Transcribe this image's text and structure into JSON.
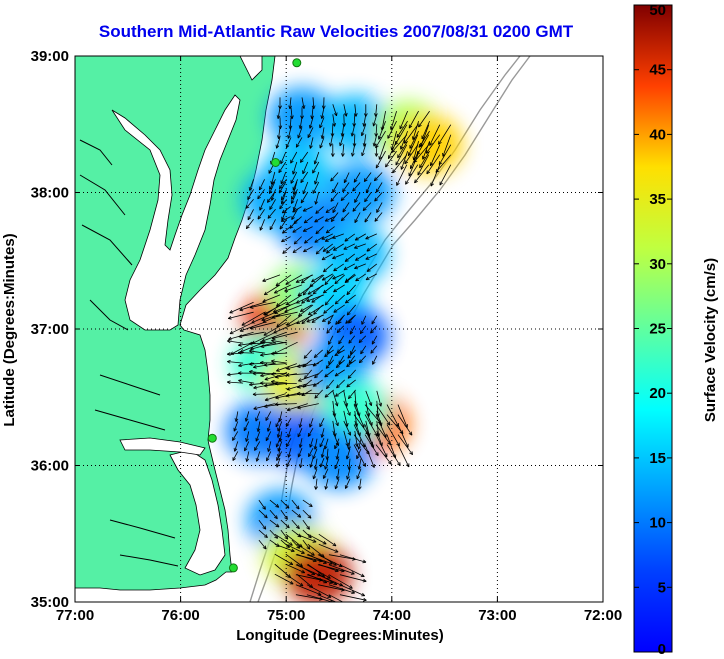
{
  "title": "Southern Mid-Atlantic Raw Velocities 2007/08/31 0200 GMT",
  "x_axis": {
    "label": "Longitude (Degrees:Minutes)",
    "ticks": [
      "77:00",
      "76:00",
      "75:00",
      "74:00",
      "73:00",
      "72:00"
    ]
  },
  "y_axis": {
    "label": "Latitude (Degrees:Minutes)",
    "ticks": [
      "39:00",
      "38:00",
      "37:00",
      "36:00",
      "35:00"
    ]
  },
  "colorbar": {
    "label": "Surface Velocity (cm/s)",
    "ticks": [
      "50",
      "45",
      "40",
      "35",
      "30",
      "25",
      "20",
      "15",
      "10",
      "5",
      "0"
    ],
    "min": 0,
    "max": 50,
    "colormap": "jet"
  },
  "chart_data": {
    "type": "heatmap",
    "title": "Southern Mid-Atlantic Raw Velocities 2007/08/31 0200 GMT",
    "xlabel": "Longitude (Degrees:Minutes)",
    "ylabel": "Latitude (Degrees:Minutes)",
    "xlim": [
      -77,
      -72
    ],
    "ylim": [
      35,
      39
    ],
    "grid": true,
    "colorbar_label": "Surface Velocity (cm/s)",
    "colorbar_range": [
      0,
      50
    ],
    "land_color": "#55f0a5",
    "blobs": [
      {
        "lon": -74.85,
        "lat": 38.55,
        "speed": 12,
        "dir_deg": 200
      },
      {
        "lon": -74.35,
        "lat": 38.5,
        "speed": 14,
        "dir_deg": 190
      },
      {
        "lon": -73.85,
        "lat": 38.45,
        "speed": 30,
        "dir_deg": 205
      },
      {
        "lon": -73.65,
        "lat": 38.35,
        "speed": 38,
        "dir_deg": 210
      },
      {
        "lon": -74.9,
        "lat": 38.15,
        "speed": 15,
        "dir_deg": 205
      },
      {
        "lon": -74.3,
        "lat": 38.0,
        "speed": 12,
        "dir_deg": 215
      },
      {
        "lon": -74.75,
        "lat": 37.75,
        "speed": 10,
        "dir_deg": 235
      },
      {
        "lon": -75.1,
        "lat": 37.95,
        "speed": 13,
        "dir_deg": 210
      },
      {
        "lon": -74.35,
        "lat": 37.55,
        "speed": 14,
        "dir_deg": 240
      },
      {
        "lon": -75.1,
        "lat": 37.05,
        "speed": 45,
        "dir_deg": 250
      },
      {
        "lon": -74.85,
        "lat": 37.25,
        "speed": 28,
        "dir_deg": 240
      },
      {
        "lon": -74.55,
        "lat": 37.25,
        "speed": 16,
        "dir_deg": 230
      },
      {
        "lon": -74.35,
        "lat": 36.95,
        "speed": 8,
        "dir_deg": 215
      },
      {
        "lon": -75.2,
        "lat": 36.75,
        "speed": 22,
        "dir_deg": 270
      },
      {
        "lon": -74.9,
        "lat": 36.6,
        "speed": 35,
        "dir_deg": 260
      },
      {
        "lon": -74.55,
        "lat": 36.7,
        "speed": 12,
        "dir_deg": 230
      },
      {
        "lon": -74.15,
        "lat": 36.3,
        "speed": 42,
        "dir_deg": 150
      },
      {
        "lon": -74.35,
        "lat": 36.4,
        "speed": 22,
        "dir_deg": 165
      },
      {
        "lon": -75.25,
        "lat": 36.25,
        "speed": 10,
        "dir_deg": 200
      },
      {
        "lon": -74.85,
        "lat": 36.2,
        "speed": 8,
        "dir_deg": 200
      },
      {
        "lon": -74.5,
        "lat": 36.05,
        "speed": 11,
        "dir_deg": 195
      },
      {
        "lon": -75.05,
        "lat": 35.6,
        "speed": 12,
        "dir_deg": 135
      },
      {
        "lon": -74.9,
        "lat": 35.35,
        "speed": 33,
        "dir_deg": 120
      },
      {
        "lon": -74.7,
        "lat": 35.2,
        "speed": 47,
        "dir_deg": 110
      }
    ],
    "hf_radar_sites": [
      {
        "lon": -74.9,
        "lat": 38.95
      },
      {
        "lon": -75.1,
        "lat": 38.22
      },
      {
        "lon": -75.7,
        "lat": 36.2
      },
      {
        "lon": -75.5,
        "lat": 35.25
      }
    ]
  }
}
